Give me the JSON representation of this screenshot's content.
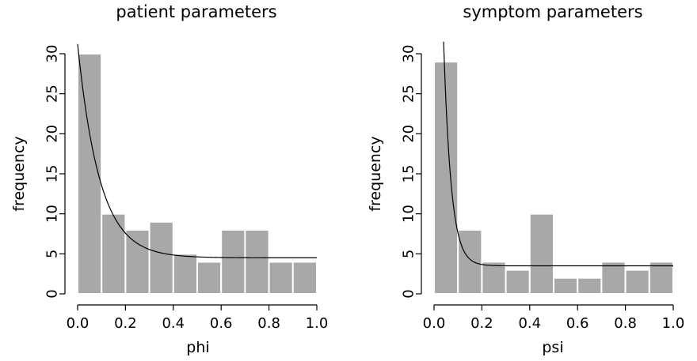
{
  "chart_data": [
    {
      "type": "bar",
      "title": "patient parameters",
      "xlabel": "phi",
      "ylabel": "frequency",
      "xlim": [
        0,
        1
      ],
      "ylim": [
        0,
        30
      ],
      "x_ticks": [
        "0.0",
        "0.2",
        "0.4",
        "0.6",
        "0.8",
        "1.0"
      ],
      "y_ticks": [
        "0",
        "5",
        "10",
        "15",
        "20",
        "25",
        "30"
      ],
      "bin_edges": [
        0,
        0.1,
        0.2,
        0.3,
        0.4,
        0.5,
        0.6,
        0.7,
        0.8,
        0.9,
        1.0
      ],
      "values": [
        30,
        10,
        8,
        9,
        5,
        4,
        8,
        8,
        4,
        4
      ],
      "grid": false,
      "fitted_curve": {
        "type": "exponential_decay",
        "start": [
          0.0,
          31.2
        ],
        "asymptote": 4.5,
        "rate": 10.8
      }
    },
    {
      "type": "bar",
      "title": "symptom parameters",
      "xlabel": "psi",
      "ylabel": "frequency",
      "xlim": [
        0,
        1
      ],
      "ylim": [
        0,
        30
      ],
      "x_ticks": [
        "0.0",
        "0.2",
        "0.4",
        "0.6",
        "0.8",
        "1.0"
      ],
      "y_ticks": [
        "0",
        "5",
        "10",
        "15",
        "20",
        "25",
        "30"
      ],
      "bin_edges": [
        0,
        0.1,
        0.2,
        0.3,
        0.4,
        0.5,
        0.6,
        0.7,
        0.8,
        0.9,
        1.0
      ],
      "values": [
        29,
        8,
        4,
        3,
        10,
        2,
        2,
        4,
        3,
        4
      ],
      "grid": false,
      "fitted_curve": {
        "type": "exponential_decay",
        "start": [
          0.04,
          31.5
        ],
        "asymptote": 3.5,
        "rate": 32
      }
    }
  ]
}
